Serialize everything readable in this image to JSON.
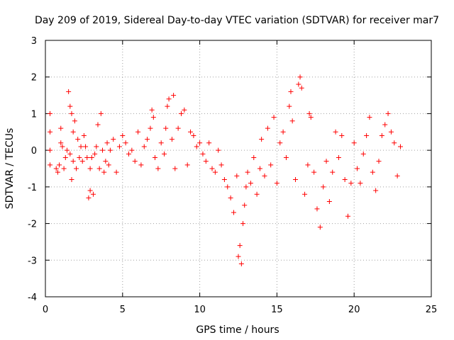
{
  "chart_data": {
    "type": "scatter",
    "title": "Day 209 of 2019, Sidereal Day-to-day VTEC variation (SDTVAR) for receiver mar7",
    "xlabel": "GPS time / hours",
    "ylabel": "SDTVAR / TECUs",
    "xlim": [
      0,
      25
    ],
    "ylim": [
      -4,
      3
    ],
    "xticks": [
      "0",
      "5",
      "10",
      "15",
      "20",
      "25"
    ],
    "yticks": [
      "3",
      "2",
      "1",
      "0",
      "-1",
      "-2",
      "-3",
      "-4"
    ],
    "grid": true,
    "marker": "plus",
    "series": [
      {
        "name": "SDTVAR",
        "color": "#ff0000",
        "points": [
          [
            0.3,
            -0.4
          ],
          [
            0.3,
            0.0
          ],
          [
            0.3,
            0.5
          ],
          [
            0.3,
            1.0
          ],
          [
            0.7,
            -0.5
          ],
          [
            0.8,
            -0.6
          ],
          [
            0.9,
            -0.4
          ],
          [
            1.0,
            0.2
          ],
          [
            1.0,
            0.6
          ],
          [
            1.1,
            0.1
          ],
          [
            1.2,
            -0.5
          ],
          [
            1.3,
            -0.2
          ],
          [
            1.4,
            0.0
          ],
          [
            1.5,
            1.6
          ],
          [
            1.6,
            1.2
          ],
          [
            1.6,
            -0.1
          ],
          [
            1.7,
            1.0
          ],
          [
            1.7,
            -0.8
          ],
          [
            1.8,
            0.5
          ],
          [
            1.8,
            -0.3
          ],
          [
            1.9,
            0.8
          ],
          [
            2.0,
            -0.5
          ],
          [
            2.1,
            0.3
          ],
          [
            2.2,
            -0.2
          ],
          [
            2.3,
            0.1
          ],
          [
            2.4,
            -0.3
          ],
          [
            2.5,
            0.4
          ],
          [
            2.6,
            0.1
          ],
          [
            2.7,
            -0.2
          ],
          [
            2.8,
            -1.3
          ],
          [
            2.9,
            -1.1
          ],
          [
            2.9,
            -0.5
          ],
          [
            3.0,
            -0.2
          ],
          [
            3.1,
            -1.2
          ],
          [
            3.2,
            -0.1
          ],
          [
            3.3,
            0.1
          ],
          [
            3.4,
            0.7
          ],
          [
            3.5,
            -0.5
          ],
          [
            3.6,
            1.0
          ],
          [
            3.7,
            0.0
          ],
          [
            3.8,
            -0.6
          ],
          [
            3.9,
            -0.3
          ],
          [
            4.0,
            0.2
          ],
          [
            4.1,
            -0.4
          ],
          [
            4.2,
            0.0
          ],
          [
            4.4,
            0.3
          ],
          [
            4.6,
            -0.6
          ],
          [
            4.8,
            0.1
          ],
          [
            5.0,
            0.4
          ],
          [
            5.2,
            0.2
          ],
          [
            5.4,
            -0.1
          ],
          [
            5.6,
            0.0
          ],
          [
            5.8,
            -0.3
          ],
          [
            6.0,
            0.5
          ],
          [
            6.2,
            -0.4
          ],
          [
            6.4,
            0.1
          ],
          [
            6.6,
            0.3
          ],
          [
            6.8,
            0.6
          ],
          [
            6.9,
            1.1
          ],
          [
            7.0,
            0.9
          ],
          [
            7.1,
            -0.2
          ],
          [
            7.3,
            -0.5
          ],
          [
            7.5,
            0.2
          ],
          [
            7.7,
            -0.1
          ],
          [
            7.8,
            0.6
          ],
          [
            7.9,
            1.2
          ],
          [
            8.0,
            1.4
          ],
          [
            8.2,
            0.3
          ],
          [
            8.3,
            1.5
          ],
          [
            8.4,
            -0.5
          ],
          [
            8.6,
            0.6
          ],
          [
            8.8,
            1.0
          ],
          [
            9.0,
            1.1
          ],
          [
            9.2,
            -0.4
          ],
          [
            9.4,
            0.5
          ],
          [
            9.6,
            0.4
          ],
          [
            9.8,
            0.1
          ],
          [
            10.0,
            0.2
          ],
          [
            10.2,
            -0.1
          ],
          [
            10.4,
            -0.3
          ],
          [
            10.6,
            0.2
          ],
          [
            10.8,
            -0.5
          ],
          [
            11.0,
            -0.6
          ],
          [
            11.2,
            0.0
          ],
          [
            11.4,
            -0.4
          ],
          [
            11.6,
            -0.8
          ],
          [
            11.8,
            -1.0
          ],
          [
            12.0,
            -1.3
          ],
          [
            12.2,
            -1.7
          ],
          [
            12.4,
            -0.7
          ],
          [
            12.5,
            -2.9
          ],
          [
            12.6,
            -2.6
          ],
          [
            12.7,
            -3.1
          ],
          [
            12.8,
            -2.0
          ],
          [
            12.9,
            -1.5
          ],
          [
            13.0,
            -1.0
          ],
          [
            13.1,
            -0.6
          ],
          [
            13.3,
            -0.9
          ],
          [
            13.5,
            -0.2
          ],
          [
            13.7,
            -1.2
          ],
          [
            13.9,
            -0.5
          ],
          [
            14.0,
            0.3
          ],
          [
            14.2,
            -0.7
          ],
          [
            14.4,
            0.6
          ],
          [
            14.6,
            -0.4
          ],
          [
            14.8,
            0.9
          ],
          [
            15.0,
            -0.9
          ],
          [
            15.2,
            0.2
          ],
          [
            15.4,
            0.5
          ],
          [
            15.6,
            -0.2
          ],
          [
            15.8,
            1.2
          ],
          [
            15.9,
            1.6
          ],
          [
            16.0,
            0.8
          ],
          [
            16.2,
            -0.8
          ],
          [
            16.4,
            1.8
          ],
          [
            16.5,
            2.0
          ],
          [
            16.6,
            1.7
          ],
          [
            16.8,
            -1.2
          ],
          [
            17.0,
            -0.4
          ],
          [
            17.1,
            1.0
          ],
          [
            17.2,
            0.9
          ],
          [
            17.4,
            -0.6
          ],
          [
            17.6,
            -1.6
          ],
          [
            17.8,
            -2.1
          ],
          [
            18.0,
            -1.0
          ],
          [
            18.2,
            -0.3
          ],
          [
            18.4,
            -1.4
          ],
          [
            18.6,
            -0.6
          ],
          [
            18.8,
            0.5
          ],
          [
            19.0,
            -0.2
          ],
          [
            19.2,
            0.4
          ],
          [
            19.4,
            -0.8
          ],
          [
            19.6,
            -1.8
          ],
          [
            19.8,
            -0.9
          ],
          [
            20.0,
            0.2
          ],
          [
            20.2,
            -0.5
          ],
          [
            20.4,
            -0.9
          ],
          [
            20.6,
            -0.1
          ],
          [
            20.8,
            0.4
          ],
          [
            21.0,
            0.9
          ],
          [
            21.2,
            -0.6
          ],
          [
            21.4,
            -1.1
          ],
          [
            21.6,
            -0.3
          ],
          [
            21.8,
            0.4
          ],
          [
            22.0,
            0.7
          ],
          [
            22.2,
            1.0
          ],
          [
            22.4,
            0.5
          ],
          [
            22.6,
            0.2
          ],
          [
            22.8,
            -0.7
          ],
          [
            23.0,
            0.1
          ]
        ]
      }
    ]
  }
}
